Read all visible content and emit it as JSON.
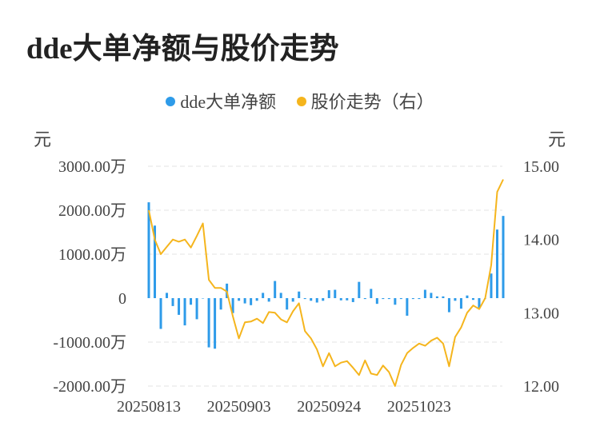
{
  "title": "dde大单净额与股价走势",
  "legend": [
    {
      "label": "dde大单净额",
      "color": "#2e9be9"
    },
    {
      "label": "股价走势（右）",
      "color": "#f5b51d"
    }
  ],
  "left_unit": "元",
  "right_unit": "元",
  "chart_data": {
    "type": "bar+line",
    "x_tick_labels": [
      "20250813",
      "20250903",
      "20250924",
      "20251023"
    ],
    "x_tick_index": [
      0,
      15,
      30,
      45
    ],
    "y_left": {
      "ticks": [
        3000,
        2000,
        1000,
        0,
        -1000,
        -2000
      ],
      "tick_labels": [
        "3000.00万",
        "2000.00万",
        "1000.00万",
        "0",
        "-1000.00万",
        "-2000.00万"
      ],
      "range": [
        -2000,
        3000
      ],
      "unit": "万元"
    },
    "y_right": {
      "ticks": [
        15,
        14,
        13,
        12
      ],
      "tick_labels": [
        "15.00",
        "14.00",
        "13.00",
        "12.00"
      ],
      "range": [
        12,
        15
      ]
    },
    "series": [
      {
        "name": "dde大单净额",
        "kind": "bar",
        "color": "#2e9be9",
        "values": [
          2180,
          1650,
          -700,
          120,
          -180,
          -380,
          -620,
          -150,
          -480,
          0,
          -1120,
          -1150,
          -260,
          330,
          -340,
          -60,
          -120,
          -160,
          -60,
          120,
          -80,
          390,
          120,
          -260,
          -80,
          150,
          -20,
          -60,
          -100,
          -60,
          180,
          190,
          -50,
          -50,
          -90,
          370,
          -20,
          210,
          -130,
          -20,
          -20,
          -150,
          -20,
          -400,
          -20,
          -20,
          190,
          120,
          40,
          40,
          -320,
          -60,
          -240,
          60,
          -40,
          -220,
          0,
          560,
          1560,
          1870
        ]
      },
      {
        "name": "股价走势（右）",
        "kind": "line",
        "color": "#f5b51d",
        "values": [
          14.4,
          14.0,
          13.8,
          13.9,
          14.0,
          13.97,
          14.0,
          13.89,
          14.05,
          14.22,
          13.45,
          13.34,
          13.34,
          13.29,
          12.95,
          12.65,
          12.87,
          12.88,
          12.92,
          12.86,
          13.01,
          13.0,
          12.91,
          12.87,
          13.02,
          13.13,
          12.75,
          12.65,
          12.5,
          12.27,
          12.45,
          12.27,
          12.32,
          12.34,
          12.25,
          12.15,
          12.35,
          12.17,
          12.15,
          12.28,
          12.19,
          12.0,
          12.29,
          12.45,
          12.52,
          12.58,
          12.55,
          12.62,
          12.66,
          12.58,
          12.27,
          12.67,
          12.8,
          13.0,
          13.1,
          13.05,
          13.2,
          13.65,
          14.65,
          14.82
        ]
      }
    ]
  }
}
